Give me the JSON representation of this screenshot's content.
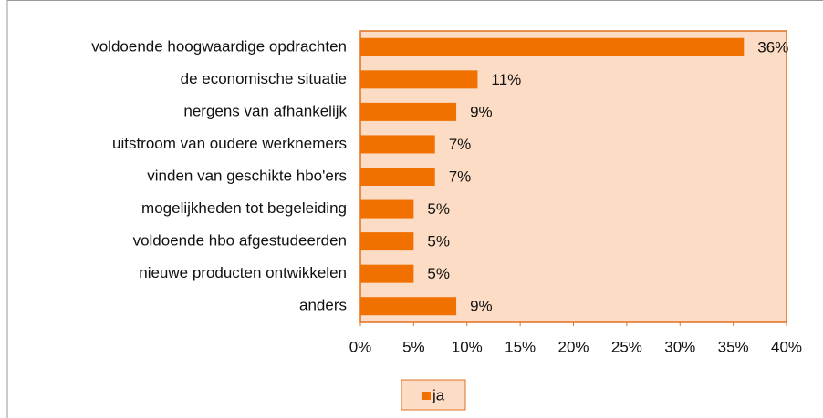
{
  "chart_data": {
    "type": "barh",
    "categories": [
      "voldoende hoogwaardige opdrachten",
      "de economische situatie",
      "nergens van afhankelijk",
      "uitstroom van oudere werknemers",
      "vinden van geschikte hbo'ers",
      "mogelijkheden tot begeleiding",
      "voldoende hbo afgestudeerden",
      "nieuwe producten ontwikkelen",
      "anders"
    ],
    "series": [
      {
        "name": "ja",
        "color": "#f07000",
        "values": [
          36,
          11,
          9,
          7,
          7,
          5,
          5,
          5,
          9
        ],
        "value_labels": [
          "36%",
          "11%",
          "9%",
          "7%",
          "7%",
          "5%",
          "5%",
          "5%",
          "9%"
        ]
      }
    ],
    "xlim": [
      0,
      40
    ],
    "xticks": [
      {
        "value": 0,
        "label": "0%"
      },
      {
        "value": 5,
        "label": "5%"
      },
      {
        "value": 10,
        "label": "10%"
      },
      {
        "value": 15,
        "label": "15%"
      },
      {
        "value": 20,
        "label": "20%"
      },
      {
        "value": 25,
        "label": "25%"
      },
      {
        "value": 30,
        "label": "30%"
      },
      {
        "value": 35,
        "label": "35%"
      },
      {
        "value": 40,
        "label": "40%"
      }
    ],
    "legend": "bottom"
  }
}
